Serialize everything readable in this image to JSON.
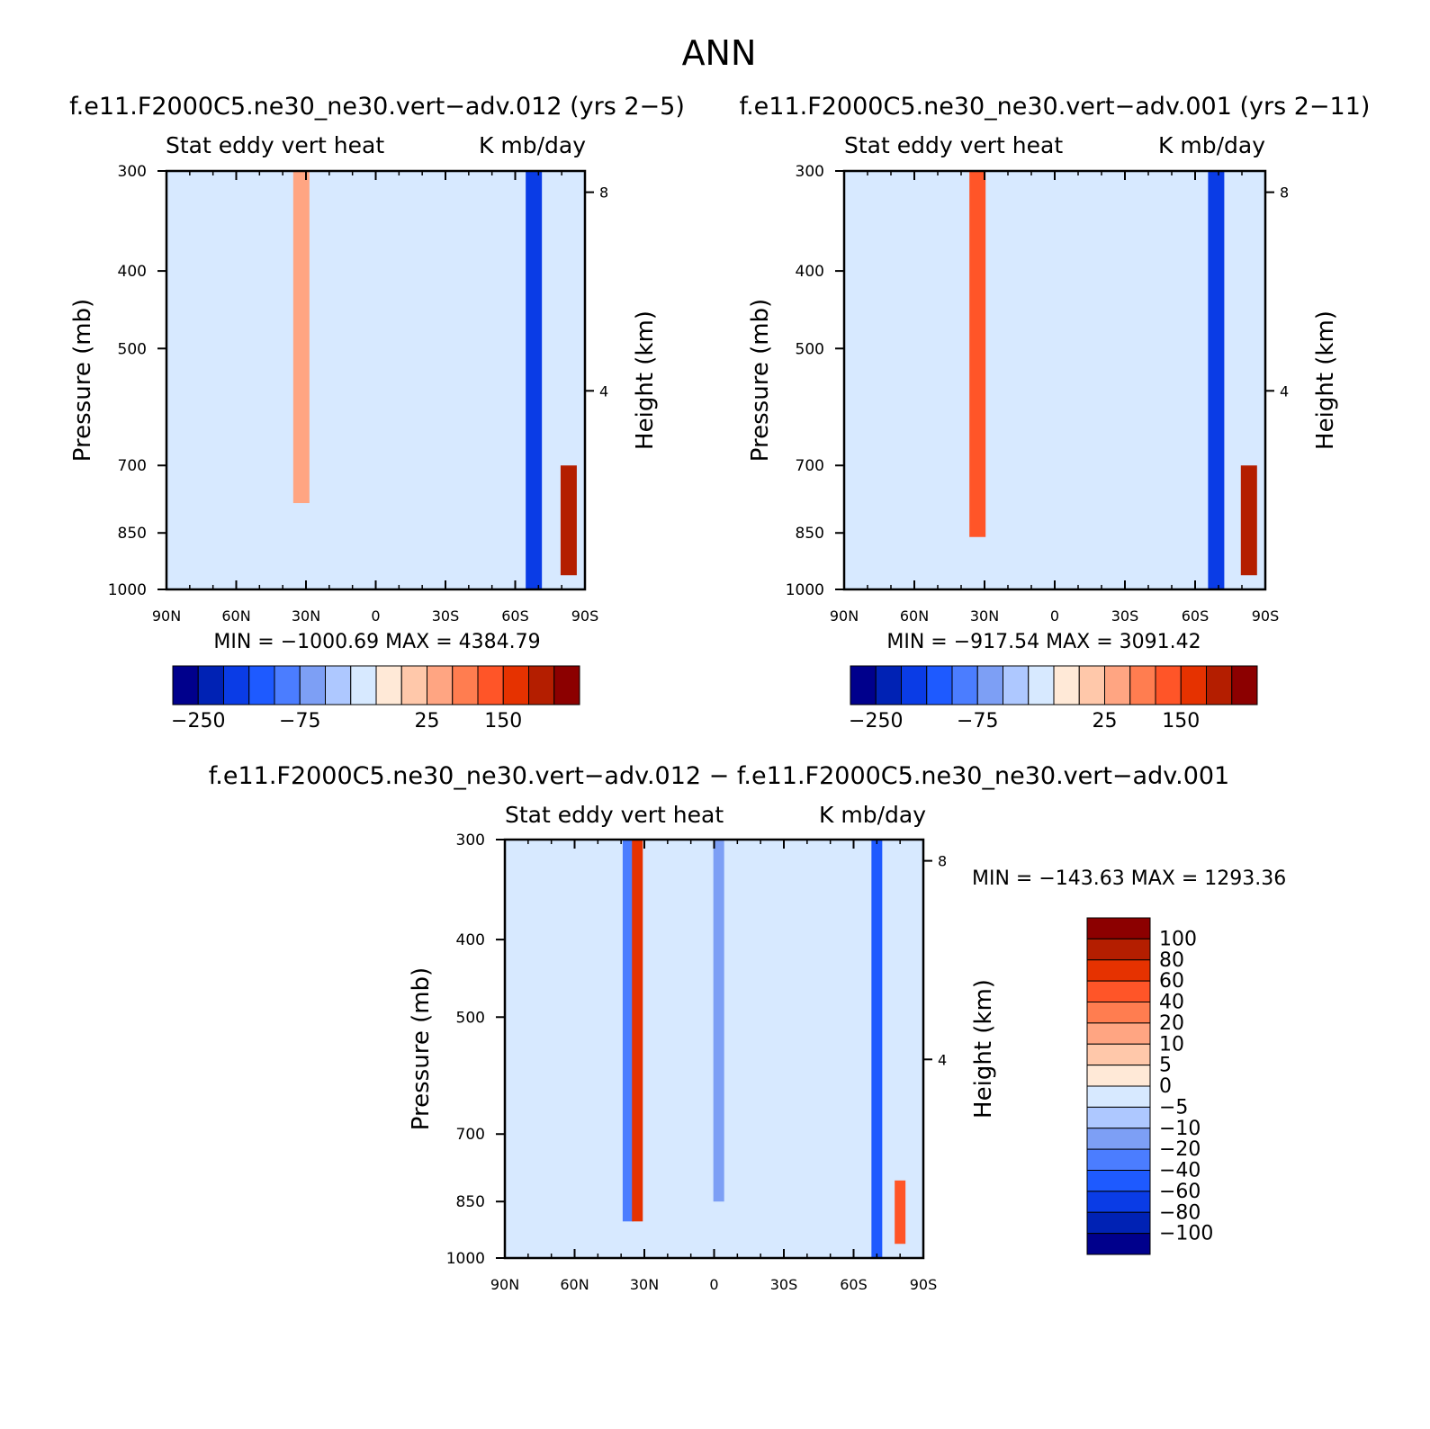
{
  "figure_title": "ANN",
  "chart_data": [
    {
      "type": "heatmap",
      "title": "f.e11.F2000C5.ne30_ne30.vert−adv.012 (yrs 2−5)",
      "left_string": "Stat eddy vert heat",
      "right_string": "K mb/day",
      "ylabel": "Pressure (mb)",
      "y2label": "Height (km)",
      "x_ticks": [
        "90N",
        "60N",
        "30N",
        "0",
        "30S",
        "60S",
        "90S"
      ],
      "xlim": [
        90,
        -90
      ],
      "y_ticks": [
        300,
        400,
        500,
        700,
        850,
        1000
      ],
      "ylim": [
        1000,
        300
      ],
      "y_scale": "log",
      "y2_ticks": [
        8,
        4
      ],
      "min_max_text": "MIN = −1000.69   MAX = 4384.79",
      "colorbar_levels": [
        -250,
        -200,
        -150,
        -100,
        -75,
        -50,
        -25,
        0,
        25,
        50,
        75,
        100,
        150,
        200,
        250
      ],
      "colorbar_labels": [
        "−250",
        "−75",
        "25",
        "150"
      ],
      "features": [
        {
          "lat": 32,
          "p_top": 300,
          "p_bottom": 780,
          "value": 60
        },
        {
          "lat": -68,
          "p_top": 300,
          "p_bottom": 1000,
          "value": -200
        },
        {
          "lat": -83,
          "p_top": 700,
          "p_bottom": 960,
          "value": 220
        }
      ]
    },
    {
      "type": "heatmap",
      "title": "f.e11.F2000C5.ne30_ne30.vert−adv.001 (yrs 2−11)",
      "left_string": "Stat eddy vert heat",
      "right_string": "K mb/day",
      "ylabel": "Pressure (mb)",
      "y2label": "Height (km)",
      "x_ticks": [
        "90N",
        "60N",
        "30N",
        "0",
        "30S",
        "60S",
        "90S"
      ],
      "xlim": [
        90,
        -90
      ],
      "y_ticks": [
        300,
        400,
        500,
        700,
        850,
        1000
      ],
      "ylim": [
        1000,
        300
      ],
      "y_scale": "log",
      "y2_ticks": [
        8,
        4
      ],
      "min_max_text": "MIN = −917.54   MAX = 3091.42",
      "colorbar_levels": [
        -250,
        -200,
        -150,
        -100,
        -75,
        -50,
        -25,
        0,
        25,
        50,
        75,
        100,
        150,
        200,
        250
      ],
      "colorbar_labels": [
        "−250",
        "−75",
        "25",
        "150"
      ],
      "features": [
        {
          "lat": 33,
          "p_top": 300,
          "p_bottom": 860,
          "value": 100
        },
        {
          "lat": -69,
          "p_top": 300,
          "p_bottom": 1000,
          "value": -200
        },
        {
          "lat": -83,
          "p_top": 700,
          "p_bottom": 960,
          "value": 220
        }
      ]
    },
    {
      "type": "heatmap",
      "title": "f.e11.F2000C5.ne30_ne30.vert−adv.012 − f.e11.F2000C5.ne30_ne30.vert−adv.001",
      "left_string": "Stat eddy vert heat",
      "right_string": "K mb/day",
      "ylabel": "Pressure (mb)",
      "y2label": "Height (km)",
      "x_ticks": [
        "90N",
        "60N",
        "30N",
        "0",
        "30S",
        "60S",
        "90S"
      ],
      "xlim": [
        90,
        -90
      ],
      "y_ticks": [
        300,
        400,
        500,
        700,
        850,
        1000
      ],
      "ylim": [
        1000,
        300
      ],
      "y_scale": "log",
      "y2_ticks": [
        8,
        4
      ],
      "min_max_text": "MIN = −143.63   MAX = 1293.36",
      "colorbar_levels": [
        -100,
        -80,
        -60,
        -40,
        -20,
        -10,
        -5,
        0,
        5,
        10,
        20,
        40,
        60,
        80,
        100
      ],
      "colorbar_labels": [
        "100",
        "80",
        "60",
        "40",
        "20",
        "10",
        "5",
        "0",
        "−5",
        "−10",
        "−20",
        "−40",
        "−60",
        "−80",
        "−100"
      ],
      "features": [
        {
          "lat": 37,
          "p_top": 300,
          "p_bottom": 900,
          "value": -40
        },
        {
          "lat": 33,
          "p_top": 300,
          "p_bottom": 900,
          "value": 60
        },
        {
          "lat": -2,
          "p_top": 300,
          "p_bottom": 850,
          "value": -20
        },
        {
          "lat": -70,
          "p_top": 300,
          "p_bottom": 1000,
          "value": -60
        },
        {
          "lat": -80,
          "p_top": 800,
          "p_bottom": 960,
          "value": 40
        }
      ]
    }
  ],
  "colors": {
    "diverging": [
      "#00008c",
      "#0022b4",
      "#0a3ce6",
      "#1e5aff",
      "#4b7dff",
      "#7d9ff5",
      "#aec8ff",
      "#d7e9ff",
      "#ffe9d7",
      "#ffc8aa",
      "#ffa582",
      "#ff7d50",
      "#ff5528",
      "#e63200",
      "#b41e00",
      "#8c0000"
    ],
    "frame": "#000000"
  }
}
